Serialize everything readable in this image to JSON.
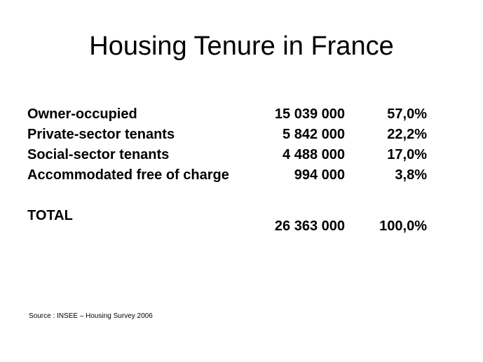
{
  "slide": {
    "title": "Housing Tenure in France",
    "rows": [
      {
        "label": "Owner-occupied",
        "count": "15 039 000",
        "share": "57,0%"
      },
      {
        "label": "Private-sector tenants",
        "count": "5 842 000",
        "share": "22,2%"
      },
      {
        "label": "Social-sector tenants",
        "count": "4 488 000",
        "share": "17,0%"
      },
      {
        "label": "Accommodated free of charge",
        "count": "994 000",
        "share": "3,8%"
      }
    ],
    "total": {
      "label": "TOTAL",
      "count": "26 363 000",
      "share": "100,0%"
    },
    "source": "Source : INSEE – Housing Survey 2006"
  }
}
